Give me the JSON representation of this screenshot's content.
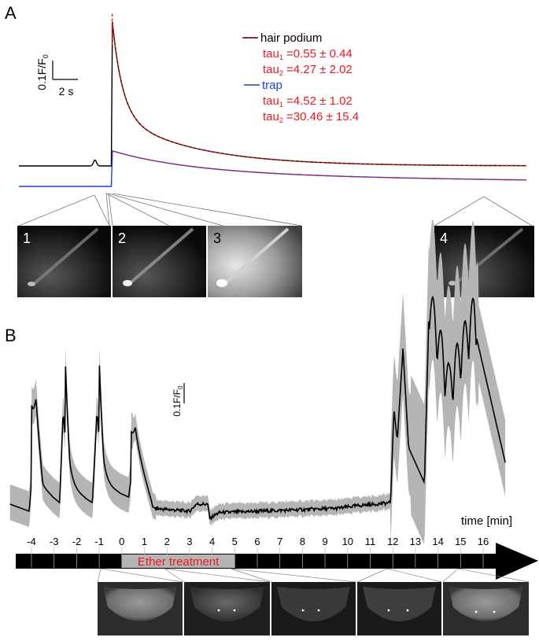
{
  "figure": {
    "panel_a_label": "A",
    "panel_b_label": "B"
  },
  "colors": {
    "hair": "#000000",
    "hair_fit": "#e8191e",
    "trap": "#1c3fd8",
    "fit_red": "#e8191e",
    "ether_text": "#e8191e",
    "band": "#b5b5b5"
  },
  "chart_data": [
    {
      "type": "line",
      "title": "",
      "scale_bar": {
        "y_label": "0.1F/F",
        "y_label_sub": "0",
        "x_label": "2 s"
      },
      "legend": [
        {
          "name": "hair podium",
          "tau1_label": "tau",
          "tau1_sub": "1",
          "tau1_value": " =0.55 ± 0.44",
          "tau2_label": "tau",
          "tau2_sub": "2",
          "tau2_value": " =4.27 ± 2.02"
        },
        {
          "name": "trap",
          "tau1_label": "tau",
          "tau1_sub": "1",
          "tau1_value": " =4.52 ± 1.02",
          "tau2_label": "tau",
          "tau2_sub": "2",
          "tau2_value": " =30.46 ± 15.4"
        }
      ],
      "x_range_s": [
        0,
        28
      ],
      "stimulus_time_s": 5.1,
      "series": [
        {
          "name": "hair podium",
          "baseline": 0.0,
          "peak": 1.95,
          "tau1_s": 0.55,
          "tau2_s": 4.27,
          "amp_fast": 1.22,
          "amp_slow": 0.68,
          "prebump_time_s": 4.2,
          "prebump": 0.08,
          "fit": "red dashed"
        },
        {
          "name": "trap",
          "baseline": 0.0,
          "peak": 0.48,
          "tau1_s": 4.52,
          "tau2_s": 30.46,
          "amp_fast": 0.3,
          "amp_slow": 0.18,
          "fit": "red dashed"
        }
      ],
      "image_insets": [
        "1",
        "2",
        "3",
        "4"
      ]
    },
    {
      "type": "line",
      "title": "",
      "xlabel": "time [min]",
      "scale_bar": {
        "y_label": "0.1F/F",
        "y_label_sub": "0"
      },
      "x_ticks": [
        "-4",
        "-3",
        "-2",
        "-1",
        "0",
        "1",
        "2",
        "3",
        "4",
        "5",
        "6",
        "7",
        "8",
        "9",
        "10",
        "11",
        "12",
        "13",
        "14",
        "15",
        "16"
      ],
      "x_range_min": [
        -5,
        17.2
      ],
      "treatment": {
        "label": "Ether treatment",
        "start_min": 0,
        "end_min": 5
      },
      "spike_times_min": [
        -4,
        -2.5,
        -1,
        0.4
      ],
      "mean_profile_min": [
        [
          -4.95,
          0.05
        ],
        [
          -4.1,
          0.0
        ],
        [
          -3.8,
          0.62
        ],
        [
          -3.5,
          0.16
        ],
        [
          -2.75,
          0.06
        ],
        [
          -2.6,
          0.7
        ],
        [
          -2.3,
          0.16
        ],
        [
          -1.3,
          0.06
        ],
        [
          -1.1,
          0.7
        ],
        [
          -0.8,
          0.18
        ],
        [
          0.3,
          0.1
        ],
        [
          0.6,
          0.45
        ],
        [
          1.4,
          0.02
        ],
        [
          3.0,
          0.0
        ],
        [
          3.3,
          0.05
        ],
        [
          3.8,
          0.05
        ],
        [
          3.9,
          -0.05
        ],
        [
          4.3,
          -0.01
        ],
        [
          6.0,
          0.0
        ],
        [
          9.5,
          0.02
        ],
        [
          10.5,
          0.04
        ],
        [
          11.9,
          0.06
        ],
        [
          12.05,
          0.72
        ],
        [
          12.2,
          0.5
        ],
        [
          12.45,
          1.15
        ],
        [
          12.7,
          0.45
        ],
        [
          13.4,
          0.2
        ],
        [
          13.6,
          1.4
        ],
        [
          14.5,
          0.8
        ],
        [
          15.6,
          1.3
        ],
        [
          17.0,
          0.33
        ]
      ],
      "image_strip": {
        "count": 5
      }
    }
  ]
}
